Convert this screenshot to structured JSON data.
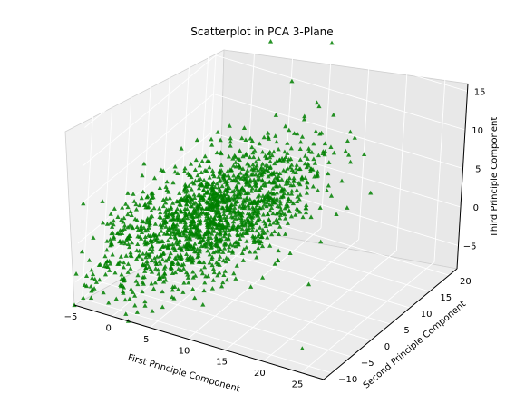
{
  "chart_data": {
    "type": "scatter",
    "title": "Scatterplot in PCA 3-Plane",
    "xlabel": "First Principle Component",
    "ylabel": "Second Principle Component",
    "zlabel": "Third Principle Component",
    "x_ticks": [
      "−5",
      "0",
      "5",
      "10",
      "15",
      "20",
      "25"
    ],
    "y_ticks": [
      "−10",
      "−5",
      "0",
      "5",
      "10",
      "15",
      "20"
    ],
    "z_ticks": [
      "−5",
      "0",
      "5",
      "10",
      "15"
    ],
    "xlim": [
      -5,
      28
    ],
    "ylim": [
      -12,
      22
    ],
    "zlim": [
      -8,
      16
    ],
    "grid": true,
    "marker": "triangle",
    "point_color": "#008000",
    "cluster": {
      "center": {
        "x": 5,
        "y": 3,
        "z": 0
      },
      "spread": {
        "x": 5,
        "y": 5,
        "z": 4
      }
    },
    "outliers": [
      {
        "x": 3,
        "y": 20,
        "z": 15
      },
      {
        "x": 10,
        "y": 22,
        "z": 16
      },
      {
        "x": 24,
        "y": -10,
        "z": -6
      },
      {
        "x": 8,
        "y": 16,
        "z": 13
      },
      {
        "x": -4,
        "y": -10,
        "z": -4
      }
    ]
  }
}
